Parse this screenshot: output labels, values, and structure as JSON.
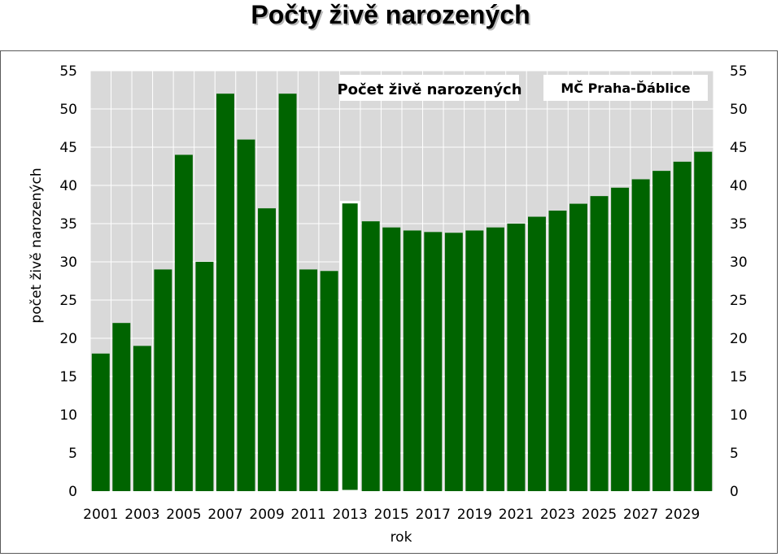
{
  "title": "Počty živě narozených",
  "chart_data": {
    "type": "bar",
    "categories": [
      2001,
      2002,
      2003,
      2004,
      2005,
      2006,
      2007,
      2008,
      2009,
      2010,
      2011,
      2012,
      2013,
      2014,
      2015,
      2016,
      2017,
      2018,
      2019,
      2020,
      2021,
      2022,
      2023,
      2024,
      2025,
      2026,
      2027,
      2028,
      2029,
      2030
    ],
    "values": [
      18,
      22,
      19,
      29,
      44,
      30,
      52,
      46,
      37,
      52,
      29,
      28.8,
      37.8,
      35.3,
      34.5,
      34.1,
      33.9,
      33.8,
      34.1,
      34.5,
      35.0,
      35.9,
      36.7,
      37.6,
      38.6,
      39.7,
      40.8,
      41.9,
      43.1,
      44.4
    ],
    "highlight_index": 12,
    "xlabel": "rok",
    "ylabel": "počet živě narozených",
    "ylim": [
      0,
      55
    ],
    "ytick_step": 5,
    "x_tick_labels": [
      "2001",
      "2003",
      "2005",
      "2007",
      "2009",
      "2011",
      "2013",
      "2015",
      "2017",
      "2019",
      "2021",
      "2023",
      "2025",
      "2027",
      "2029"
    ],
    "grid": true,
    "legend_label": "Počet živě narozených",
    "annotation": "MČ Praha-Ďáblice",
    "colors": {
      "bar": "#006400",
      "plot_bg": "#d9d9d9",
      "grid": "#ffffff",
      "highlight_border": "#ffffff"
    }
  }
}
